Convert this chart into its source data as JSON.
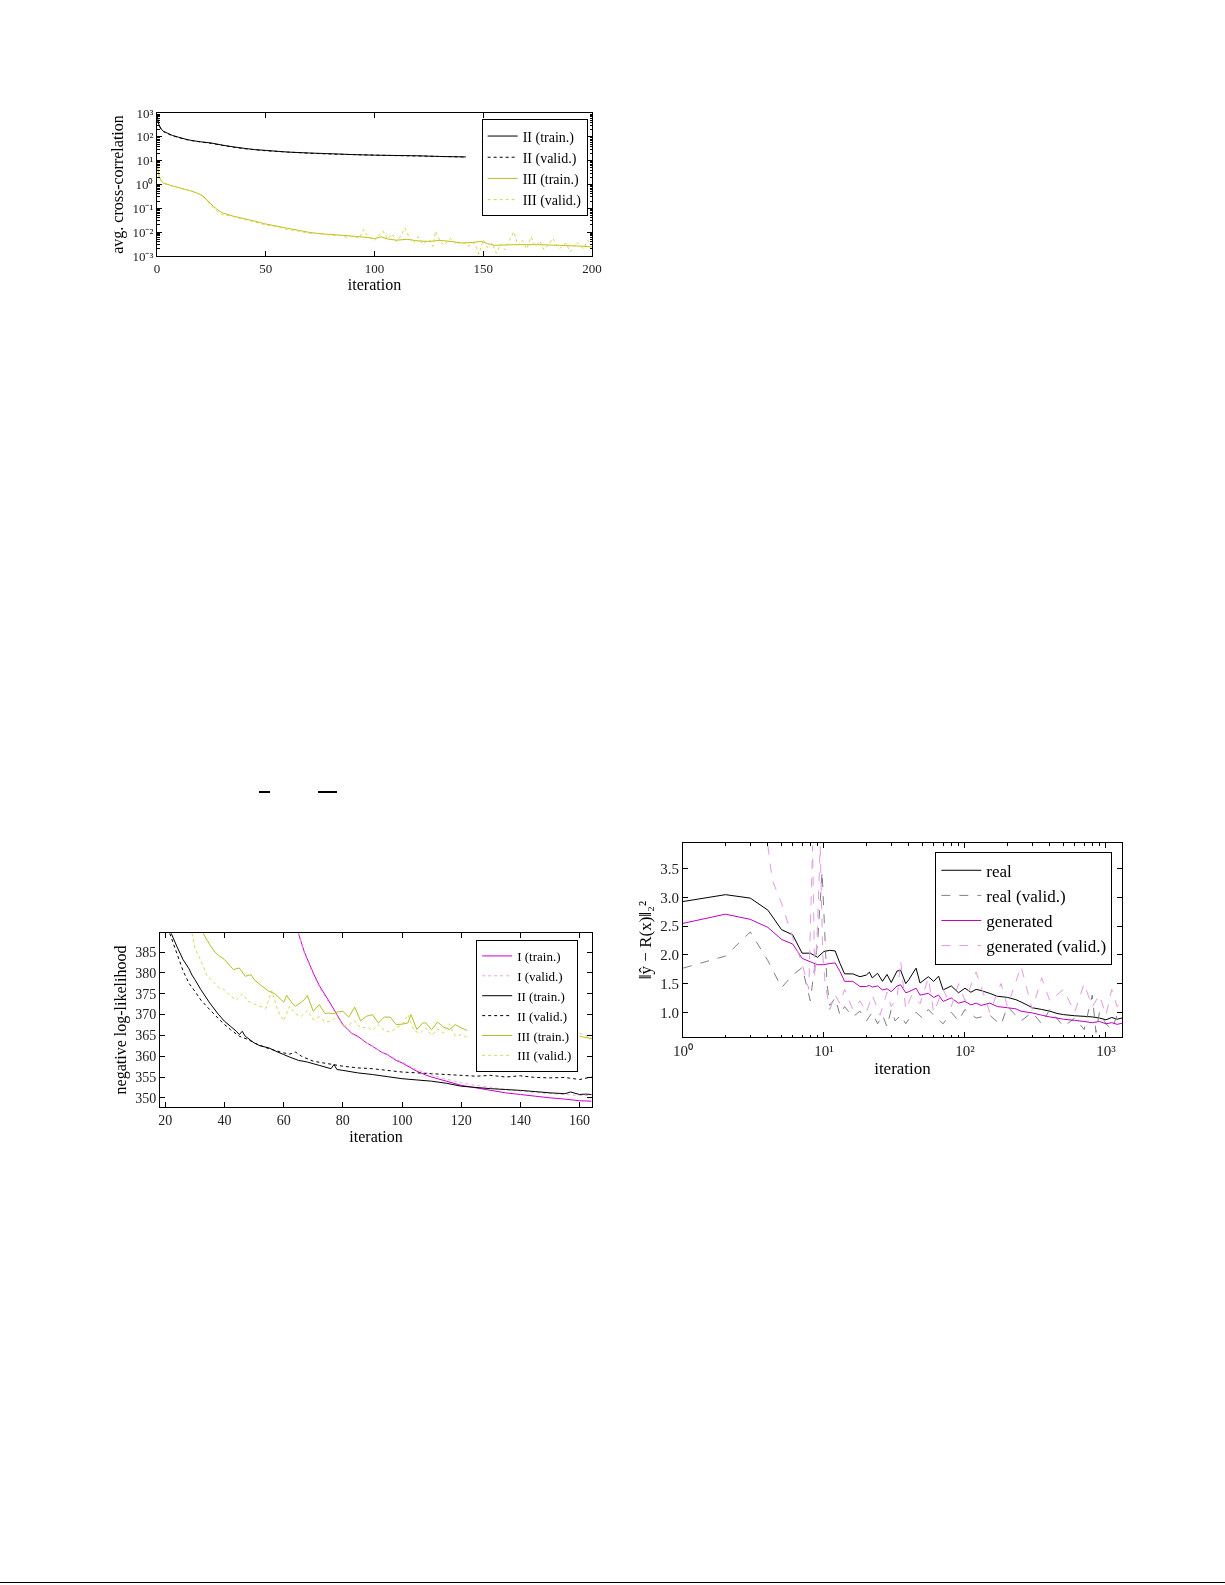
{
  "chart_data": [
    {
      "type": "line",
      "xlabel": "iteration",
      "ylabel": "avg. cross-correlation",
      "log": "y",
      "legend": "top right",
      "xlim": [
        0,
        200
      ],
      "xticks": [
        0,
        50,
        100,
        150,
        200
      ],
      "ylim": [
        0.001,
        1000
      ],
      "yticks": [
        {
          "value": 0.001,
          "label": "10⁻³"
        },
        {
          "value": 0.01,
          "label": "10⁻²"
        },
        {
          "value": 0.1,
          "label": "10⁻¹"
        },
        {
          "value": 1,
          "label": "10⁰"
        },
        {
          "value": 10,
          "label": "10¹"
        },
        {
          "value": 100,
          "label": "10²"
        },
        {
          "value": 1000,
          "label": "10³"
        }
      ],
      "series": [
        {
          "name": "II (train.)",
          "color": "#000000",
          "line_style": "solid",
          "x": [
            0,
            0.5,
            1,
            2,
            3,
            5,
            7,
            10,
            13,
            16,
            20,
            25,
            30,
            35,
            40,
            45,
            50,
            60,
            70,
            80,
            90,
            100,
            110,
            120,
            130,
            140,
            142
          ],
          "values": [
            900,
            450,
            300,
            210,
            170,
            140,
            115,
            96,
            80,
            70,
            62,
            55,
            45,
            38,
            33,
            29,
            27,
            23,
            21,
            19.5,
            18,
            17,
            16.5,
            16,
            15,
            14.5,
            14.3
          ]
        },
        {
          "name": "II (valid.)",
          "color": "#000000",
          "line_style": "dotted",
          "x": [
            0,
            0.5,
            1,
            2,
            3,
            5,
            7,
            10,
            13,
            16,
            20,
            25,
            30,
            35,
            40,
            45,
            50,
            60,
            70,
            80,
            90,
            100,
            110,
            120,
            130,
            140,
            142
          ],
          "values": [
            850,
            420,
            290,
            200,
            165,
            135,
            112,
            93,
            78,
            69,
            61,
            53,
            44,
            37,
            32,
            29,
            26,
            23,
            20.5,
            19,
            18,
            17,
            16.3,
            15.8,
            15,
            14.3,
            14.2
          ]
        },
        {
          "name": "III (train.)",
          "color": "#bfbf1a",
          "line_style": "solid",
          "x": [
            0,
            0.5,
            1,
            2,
            3,
            5,
            7,
            10,
            13,
            15,
            18,
            20,
            22,
            24,
            26,
            28,
            30,
            35,
            40,
            45,
            50,
            55,
            60,
            65,
            70,
            75,
            80,
            85,
            90,
            95,
            100,
            103,
            106,
            110,
            115,
            120,
            125,
            130,
            135,
            140,
            145,
            149,
            152,
            155,
            160,
            165,
            170,
            175,
            180,
            185,
            190,
            195,
            200
          ],
          "values": [
            11,
            4,
            2.2,
            1.4,
            1.15,
            1,
            0.88,
            0.75,
            0.62,
            0.56,
            0.45,
            0.38,
            0.28,
            0.18,
            0.12,
            0.085,
            0.065,
            0.047,
            0.037,
            0.029,
            0.022,
            0.018,
            0.0145,
            0.012,
            0.0098,
            0.0086,
            0.008,
            0.0074,
            0.0068,
            0.0062,
            0.0054,
            0.0064,
            0.0052,
            0.0046,
            0.005,
            0.0043,
            0.0041,
            0.0045,
            0.0041,
            0.0035,
            0.0037,
            0.0041,
            0.0033,
            0.0028,
            0.0029,
            0.003,
            0.003,
            0.003,
            0.0029,
            0.0028,
            0.0027,
            0.0026,
            0.0024
          ]
        },
        {
          "name": "III (valid.)",
          "color": "#d6d64a",
          "line_style": "dotted",
          "x": [
            0,
            0.5,
            1,
            2,
            3,
            5,
            7,
            10,
            13,
            15,
            18,
            20,
            22,
            24,
            26,
            28,
            30,
            35,
            40,
            45,
            50,
            55,
            60,
            65,
            70,
            75,
            80,
            85,
            88,
            90,
            93,
            95,
            97,
            100,
            102,
            104,
            106,
            108,
            110,
            112,
            114,
            116,
            118,
            120,
            122,
            125,
            127,
            128,
            130,
            132,
            135,
            138,
            140,
            143,
            146,
            148,
            150,
            152,
            154,
            156,
            158,
            160,
            162,
            164,
            166,
            168,
            170,
            172,
            174,
            176,
            178,
            180,
            182,
            185,
            188,
            190,
            193,
            196,
            198,
            200
          ],
          "values": [
            9,
            3.8,
            2.1,
            1.35,
            1.1,
            0.95,
            0.85,
            0.72,
            0.6,
            0.55,
            0.44,
            0.36,
            0.26,
            0.16,
            0.1,
            0.07,
            0.055,
            0.045,
            0.034,
            0.027,
            0.02,
            0.017,
            0.013,
            0.011,
            0.009,
            0.0085,
            0.0075,
            0.007,
            0.0058,
            0.0072,
            0.0055,
            0.013,
            0.0065,
            0.0045,
            0.0075,
            0.011,
            0.005,
            0.0085,
            0.004,
            0.0068,
            0.015,
            0.006,
            0.0035,
            0.0065,
            0.0032,
            0.0048,
            0.0025,
            0.011,
            0.0045,
            0.0028,
            0.0055,
            0.003,
            0.0042,
            0.0025,
            0.0036,
            0.0012,
            0.0048,
            0.0022,
            0.0035,
            0.0013,
            0.0032,
            0.0018,
            0.0045,
            0.0105,
            0.0028,
            0.0045,
            0.002,
            0.0065,
            0.0025,
            0.0042,
            0.0018,
            0.003,
            0.0055,
            0.002,
            0.0035,
            0.0015,
            0.0038,
            0.002,
            0.0045,
            0.0028
          ]
        }
      ]
    },
    {
      "type": "line",
      "xlabel": "iteration",
      "ylabel": "negative log-likelihood",
      "legend": "top right",
      "xlim": [
        18.2,
        164.2
      ],
      "xticks": [
        20,
        40,
        60,
        80,
        100,
        120,
        140,
        160
      ],
      "ylim": [
        347.8,
        389.6
      ],
      "yticks": [
        350,
        355,
        360,
        365,
        370,
        375,
        380,
        385
      ],
      "series": [
        {
          "name": "I (train.)",
          "color": "#cc00cc",
          "line_style": "solid",
          "x": [
            65,
            67,
            70,
            72,
            75,
            78,
            80,
            83,
            85,
            88,
            90,
            93,
            95,
            98,
            100,
            103,
            105,
            108,
            110,
            115,
            120,
            125,
            130,
            135,
            140,
            145,
            150,
            155,
            160,
            164
          ],
          "values": [
            389.5,
            385,
            380,
            377,
            373.6,
            370,
            367.6,
            365.5,
            364.8,
            363.2,
            362.4,
            361,
            360.4,
            359,
            358.4,
            357.2,
            356.4,
            355.5,
            355,
            354,
            353,
            352.4,
            351.8,
            351.2,
            350.8,
            350.4,
            350,
            349.7,
            349.3,
            349.2
          ]
        },
        {
          "name": "I (valid.)",
          "color": "#e6a6e6",
          "line_style": "dotted",
          "x": [
            65,
            67,
            70,
            72,
            75,
            78,
            80,
            83,
            85,
            88,
            90,
            93,
            95,
            98,
            100,
            103,
            105,
            108,
            110,
            115,
            120,
            125,
            130,
            135,
            140,
            145,
            150,
            155,
            160,
            164
          ],
          "values": [
            389.5,
            384.6,
            379.6,
            376.6,
            373.2,
            369.8,
            367.4,
            365.4,
            364.6,
            363.2,
            362.4,
            361.1,
            360.5,
            359.2,
            358.6,
            357.5,
            356.8,
            356,
            355.5,
            354.5,
            353.6,
            353,
            352.5,
            352,
            351.6,
            351.3,
            351,
            350.8,
            350.6,
            350.5
          ]
        },
        {
          "name": "II (train.)",
          "color": "#000000",
          "line_style": "solid",
          "x": [
            22,
            24,
            26,
            28,
            29,
            30,
            32,
            35,
            38,
            40,
            42,
            44,
            45,
            46,
            47,
            50,
            52,
            55,
            58,
            60,
            62,
            65,
            68,
            70,
            72,
            75,
            76,
            77,
            78,
            80,
            85,
            90,
            95,
            100,
            105,
            110,
            115,
            120,
            125,
            130,
            135,
            140,
            145,
            150,
            155,
            157,
            160,
            162,
            164
          ],
          "values": [
            389.5,
            386.2,
            383.2,
            381,
            379.5,
            378.4,
            376,
            372.8,
            370,
            368.4,
            367.2,
            366,
            365.2,
            366,
            364.8,
            363.2,
            362.5,
            362,
            361,
            360.4,
            359.8,
            359,
            358.6,
            358.2,
            357.8,
            357.2,
            357,
            358,
            356.8,
            356.6,
            356,
            355.6,
            355.1,
            354.6,
            354.3,
            354,
            353.5,
            352.8,
            352.5,
            352.2,
            352,
            351.8,
            351.5,
            351.2,
            351,
            351.4,
            350.8,
            350.9,
            350.8
          ]
        },
        {
          "name": "II (valid.)",
          "color": "#000000",
          "line_style": "dotted",
          "x": [
            21.5,
            24,
            26,
            28,
            30,
            32,
            35,
            38,
            40,
            42,
            45,
            48,
            50,
            55,
            60,
            62,
            64,
            66,
            70,
            75,
            80,
            85,
            90,
            95,
            100,
            105,
            110,
            115,
            120,
            125,
            130,
            135,
            140,
            145,
            150,
            155,
            160,
            164
          ],
          "values": [
            389.5,
            384.5,
            380.5,
            377.5,
            375.6,
            373.5,
            371.2,
            369,
            367.6,
            366.4,
            364.8,
            364,
            363.2,
            361.8,
            360.8,
            360.5,
            361,
            360,
            358.8,
            358.2,
            357.6,
            357.2,
            357,
            356.6,
            356.2,
            356,
            355.8,
            355.6,
            355.4,
            355.2,
            355.4,
            355,
            355.3,
            354.9,
            354.8,
            354.9,
            354.4,
            355
          ]
        },
        {
          "name": "III (train.)",
          "color": "#b5bd22",
          "line_style": "solid",
          "x": [
            32.8,
            35,
            37,
            38,
            40,
            42,
            43,
            45,
            47,
            49,
            50,
            52,
            55,
            57,
            60,
            61,
            63,
            64,
            66,
            67,
            68,
            70,
            72,
            74,
            75,
            77,
            78,
            80,
            82,
            84,
            86,
            88,
            90,
            92,
            94,
            96,
            98,
            100,
            102,
            103,
            105,
            107,
            108,
            110,
            112,
            114,
            116,
            118,
            120,
            122,
            140,
            160,
            164.2
          ],
          "values": [
            389.5,
            386.8,
            384.8,
            384.2,
            383.2,
            381.6,
            380.8,
            381.2,
            379.2,
            379.6,
            378.4,
            377.2,
            375.6,
            375,
            373,
            374.6,
            372.6,
            372,
            373,
            373.6,
            374.6,
            370.8,
            372.4,
            370.2,
            370.4,
            370.2,
            370.6,
            370.8,
            369.4,
            371.8,
            368.5,
            369.6,
            370,
            368,
            369.4,
            369.4,
            367.6,
            367.7,
            368,
            370,
            366.4,
            368,
            368,
            366.4,
            368.2,
            367,
            366.4,
            367.6,
            366.8,
            366.2,
            null,
            364.8,
            364.2
          ]
        },
        {
          "name": "III (valid.)",
          "color": "#d8d860",
          "line_style": "dotted",
          "x": [
            29,
            30,
            32,
            34,
            36,
            38,
            40,
            42,
            44,
            46,
            48,
            50,
            52,
            54,
            56,
            58,
            60,
            62,
            64,
            66,
            68,
            70,
            72,
            74,
            76,
            78,
            80,
            82,
            84,
            86,
            88,
            90,
            92,
            94,
            96,
            98,
            100,
            102,
            104,
            106,
            108,
            110,
            112,
            114,
            116,
            118,
            120,
            122,
            140,
            160,
            164.2
          ],
          "values": [
            389.5,
            386,
            383,
            379.5,
            378,
            376.5,
            376,
            374.5,
            373.5,
            375,
            373.2,
            372.5,
            372,
            371.5,
            375.8,
            371,
            368.5,
            372,
            370.2,
            369.6,
            371,
            368.8,
            369.5,
            368.2,
            368.4,
            369.6,
            367.2,
            367.5,
            368.5,
            366.8,
            367,
            366.2,
            367.6,
            366.2,
            365.8,
            366.8,
            367.5,
            370,
            366.2,
            365.5,
            366.8,
            365,
            366.5,
            365.6,
            367.8,
            364.8,
            365.2,
            364.5,
            null,
            365.5,
            364.3
          ]
        }
      ]
    },
    {
      "type": "line",
      "xlabel": "iteration",
      "ylabel": "‖ŷ − R(x)‖₂²",
      "log": "x",
      "legend": "top right",
      "xlim": [
        1,
        1300
      ],
      "xticks": [
        {
          "value": 1,
          "label": "10⁰"
        },
        {
          "value": 10,
          "label": "10¹"
        },
        {
          "value": 100,
          "label": "10²"
        },
        {
          "value": 1000,
          "label": "10³"
        }
      ],
      "ylim": [
        0.57,
        3.95
      ],
      "yticks": [
        {
          "value": 1,
          "label": "1.0"
        },
        1.5,
        {
          "value": 2,
          "label": "2.0"
        },
        2.5,
        {
          "value": 3,
          "label": "3.0"
        },
        3.5
      ],
      "series": [
        {
          "name": "real",
          "color": "#000000",
          "line_style": "solid",
          "x": [
            1,
            2,
            3,
            4,
            5,
            6,
            7,
            8,
            9,
            10,
            11,
            12,
            13,
            14,
            16,
            18,
            20,
            21,
            22,
            24,
            26,
            28,
            30,
            33,
            35,
            38,
            40,
            45,
            48,
            55,
            60,
            65,
            70,
            80,
            90,
            100,
            110,
            120,
            130,
            150,
            170,
            200,
            230,
            250,
            280,
            300,
            350,
            400,
            450,
            500,
            600,
            700,
            800,
            900,
            1000,
            1100,
            1200,
            1300
          ],
          "values": [
            2.93,
            3.05,
            2.99,
            2.78,
            2.44,
            2.35,
            2.03,
            2.03,
            1.96,
            2.06,
            2.08,
            2.07,
            1.85,
            1.67,
            1.67,
            1.62,
            1.65,
            1.7,
            1.6,
            1.68,
            1.54,
            1.66,
            1.52,
            1.72,
            1.73,
            1.5,
            1.57,
            1.77,
            1.51,
            1.62,
            1.54,
            1.63,
            1.39,
            1.46,
            1.34,
            1.42,
            1.35,
            1.4,
            1.38,
            1.33,
            1.28,
            1.26,
            1.22,
            1.18,
            1.12,
            1.08,
            1.05,
            1.02,
            0.98,
            0.96,
            0.94,
            0.93,
            0.92,
            0.9,
            0.87,
            0.91,
            0.88,
            0.9
          ]
        },
        {
          "name": "real (valid.)",
          "color": "#808080",
          "line_style": "dashed",
          "x": [
            1,
            2,
            3,
            4,
            5,
            6,
            7,
            8,
            9,
            9.7,
            10.5,
            11,
            12,
            13,
            14,
            16,
            18,
            20,
            22,
            24,
            26,
            28,
            30,
            32,
            35,
            38,
            40,
            45,
            50,
            55,
            60,
            70,
            80,
            90,
            100,
            120,
            150,
            180,
            200,
            250,
            300,
            350,
            400,
            500,
            600,
            700,
            800,
            850,
            900,
            1000,
            1100,
            1200,
            1300
          ],
          "values": [
            1.77,
            1.98,
            2.4,
            1.9,
            1.43,
            1.65,
            1.78,
            1.2,
            2.2,
            3.45,
            1.5,
            1.12,
            1.25,
            0.95,
            1.1,
            0.92,
            1.02,
            0.85,
            1,
            0.8,
            0.95,
            0.75,
            1.05,
            0.85,
            0.95,
            0.8,
            0.88,
            1,
            0.9,
            1.05,
            0.95,
            0.8,
            1,
            0.85,
            1.05,
            0.9,
            0.95,
            0.78,
            1.1,
            0.85,
            1,
            0.8,
            1.05,
            0.75,
            0.9,
            0.7,
            1.3,
            0.65,
            1,
            0.8,
            0.7,
            0.95,
            0.85
          ]
        },
        {
          "name": "generated",
          "color": "#c000c0",
          "line_style": "solid",
          "x": [
            1,
            2,
            3,
            4,
            5,
            6,
            7,
            8,
            9,
            10,
            11,
            12,
            13,
            14,
            16,
            18,
            20,
            21,
            22,
            24,
            26,
            28,
            30,
            33,
            35,
            38,
            40,
            45,
            48,
            55,
            60,
            65,
            70,
            80,
            90,
            100,
            110,
            120,
            130,
            150,
            170,
            200,
            230,
            250,
            280,
            300,
            350,
            400,
            450,
            500,
            600,
            700,
            800,
            900,
            1000,
            1100,
            1200,
            1300
          ],
          "values": [
            2.55,
            2.71,
            2.62,
            2.48,
            2.27,
            2.19,
            1.94,
            1.88,
            1.83,
            1.83,
            1.85,
            1.86,
            1.71,
            1.54,
            1.54,
            1.45,
            1.45,
            1.47,
            1.44,
            1.46,
            1.39,
            1.41,
            1.36,
            1.46,
            1.48,
            1.34,
            1.36,
            1.42,
            1.3,
            1.33,
            1.26,
            1.3,
            1.19,
            1.25,
            1.16,
            1.19,
            1.13,
            1.16,
            1.12,
            1.16,
            1.1,
            1.08,
            1.06,
            1.02,
            1,
            0.99,
            0.95,
            0.92,
            0.9,
            0.88,
            0.86,
            0.84,
            0.82,
            0.84,
            0.8,
            0.82,
            0.79,
            0.81
          ]
        },
        {
          "name": "generated (valid.)",
          "color": "#e29be2",
          "line_style": "dashed",
          "x": [
            4,
            4.3,
            5,
            6,
            7,
            7.8,
            8.3,
            8.6,
            9,
            9.4,
            9.8,
            10.2,
            11,
            12,
            13,
            14,
            16,
            18,
            20,
            22,
            25,
            28,
            30,
            33,
            35,
            38,
            42,
            48,
            55,
            60,
            70,
            80,
            90,
            100,
            120,
            150,
            180,
            200,
            250,
            300,
            350,
            400,
            500,
            600,
            700,
            800,
            900,
            1000,
            1100,
            1200,
            1300
          ],
          "values": [
            3.9,
            3.3,
            2.9,
            2.3,
            1.85,
            1.4,
            3.9,
            1.6,
            2.5,
            3.9,
            2,
            1.5,
            1.05,
            1.3,
            1.15,
            1.4,
            1.05,
            1.2,
            1,
            1.3,
            0.95,
            1.35,
            1.1,
            1.25,
            1.9,
            1.05,
            1.3,
            1.15,
            1.6,
            1,
            1.4,
            1.1,
            1.5,
            1.2,
            1.7,
            1,
            1.5,
            1.1,
            1.8,
            1.05,
            1.6,
            1.2,
            1.4,
            1,
            1.5,
            1.1,
            1.3,
            0.95,
            1.4,
            1.1,
            1.2
          ]
        }
      ]
    }
  ]
}
